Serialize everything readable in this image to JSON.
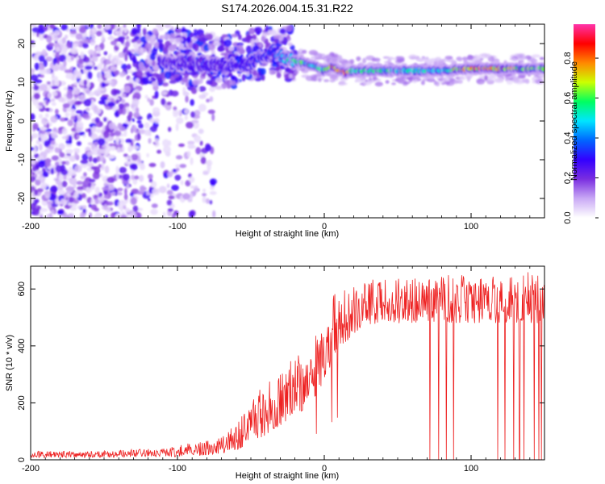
{
  "chart_data": [
    {
      "type": "heatmap",
      "title": "S174.2026.004.15.31.R22",
      "xlabel": "Height of straight line (km)",
      "ylabel": "Frequency (Hz)",
      "xlim": [
        -200,
        150
      ],
      "ylim": [
        -25,
        25
      ],
      "xticks": [
        -200,
        -100,
        0,
        100
      ],
      "yticks": [
        20,
        10,
        0,
        -10,
        -20
      ],
      "colorbar": {
        "label": "Normalized spectral amplitude",
        "range": [
          0.0,
          0.97
        ],
        "ticks": [
          0.0,
          0.2,
          0.4,
          0.6,
          0.8
        ],
        "colors": [
          "#ffffff",
          "#c9a9f5",
          "#7a2ee0",
          "#3300ff",
          "#0066ff",
          "#00e5ff",
          "#00ff60",
          "#ccff00",
          "#ff8800",
          "#ff0000",
          "#ff33aa"
        ]
      },
      "ridge": {
        "description": "narrowband signal track",
        "x": [
          -110,
          -90,
          -70,
          -50,
          -35,
          -25,
          -15,
          -5,
          0,
          5,
          10,
          15,
          20,
          40,
          60,
          80,
          100,
          120,
          150
        ],
        "frequency": [
          15,
          15,
          14,
          15,
          18,
          16,
          15,
          14,
          13,
          14,
          13,
          12.5,
          13,
          13,
          13,
          13,
          13.5,
          13.5,
          13.5
        ],
        "amplitude": [
          0.25,
          0.25,
          0.25,
          0.3,
          0.35,
          0.5,
          0.6,
          0.55,
          0.6,
          0.7,
          0.8,
          0.9,
          0.6,
          0.55,
          0.55,
          0.55,
          0.75,
          0.8,
          0.6
        ]
      },
      "noise_region": {
        "x_range": [
          -200,
          -75
        ],
        "frequency_range": [
          -25,
          25
        ],
        "amplitude_range": [
          0.0,
          0.3
        ]
      }
    },
    {
      "type": "line",
      "xlabel": "Height of straight line (km)",
      "ylabel": "SNR (10 * v/v)",
      "xlim": [
        -200,
        150
      ],
      "ylim": [
        0,
        680
      ],
      "xticks": [
        -200,
        -100,
        0,
        100
      ],
      "yticks": [
        0,
        200,
        400,
        600
      ],
      "series": [
        {
          "name": "SNR",
          "color": "#ee2222",
          "trend_x": [
            -200,
            -150,
            -110,
            -90,
            -75,
            -60,
            -45,
            -30,
            -15,
            -5,
            0,
            5,
            10,
            20,
            30,
            40,
            60,
            80,
            100,
            120,
            150
          ],
          "trend_lower": [
            8,
            8,
            10,
            12,
            15,
            30,
            70,
            120,
            170,
            230,
            280,
            330,
            380,
            430,
            470,
            480,
            470,
            470,
            480,
            480,
            480
          ],
          "trend_upper": [
            30,
            32,
            40,
            60,
            70,
            130,
            240,
            320,
            380,
            450,
            520,
            570,
            600,
            620,
            630,
            640,
            640,
            650,
            660,
            660,
            660
          ],
          "dropouts_x": [
            72,
            78,
            83,
            88,
            118,
            123,
            129,
            133,
            136,
            143,
            146,
            148
          ]
        }
      ]
    }
  ]
}
